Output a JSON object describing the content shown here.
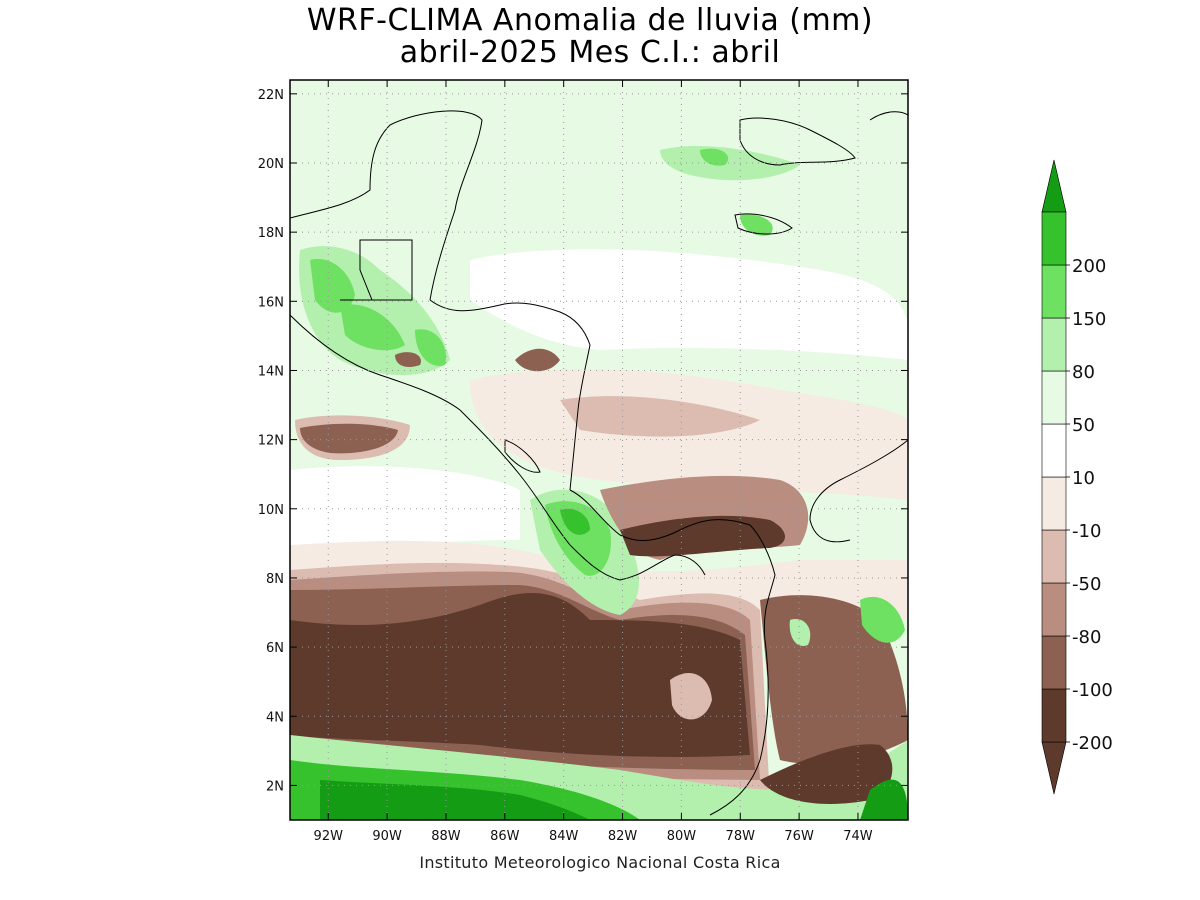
{
  "title": {
    "line1": "WRF-CLIMA Anomalia de lluvia (mm)",
    "line2": "abril-2025 Mes C.I.: abril"
  },
  "footer": "Instituto Meteorologico Nacional Costa Rica",
  "map": {
    "lon_range": [
      -93.3,
      -72.3
    ],
    "lat_range": [
      1.0,
      22.4
    ],
    "lat_ticks": [
      {
        "value": 22,
        "label": "22N"
      },
      {
        "value": 20,
        "label": "20N"
      },
      {
        "value": 18,
        "label": "18N"
      },
      {
        "value": 16,
        "label": "16N"
      },
      {
        "value": 14,
        "label": "14N"
      },
      {
        "value": 12,
        "label": "12N"
      },
      {
        "value": 10,
        "label": "10N"
      },
      {
        "value": 8,
        "label": "8N"
      },
      {
        "value": 6,
        "label": "6N"
      },
      {
        "value": 4,
        "label": "4N"
      },
      {
        "value": 2,
        "label": "2N"
      }
    ],
    "lon_ticks": [
      {
        "value": -92,
        "label": "92W"
      },
      {
        "value": -90,
        "label": "90W"
      },
      {
        "value": -88,
        "label": "88W"
      },
      {
        "value": -86,
        "label": "86W"
      },
      {
        "value": -84,
        "label": "84W"
      },
      {
        "value": -82,
        "label": "82W"
      },
      {
        "value": -80,
        "label": "80W"
      },
      {
        "value": -78,
        "label": "78W"
      },
      {
        "value": -76,
        "label": "76W"
      },
      {
        "value": -74,
        "label": "74W"
      }
    ],
    "gridlines": "dotted"
  },
  "colorbar": {
    "levels": [
      "-200",
      "-100",
      "-80",
      "-50",
      "-10",
      "10",
      "50",
      "80",
      "150",
      "200"
    ],
    "colors": {
      "min_triangle": "#5e3a2c",
      "bands": [
        "#5e3a2c",
        "#8c6152",
        "#b98d80",
        "#dcbcb0",
        "#f5ebe2",
        "#ffffff",
        "#e6fae4",
        "#b3f0ad",
        "#6ee062",
        "#35c22c"
      ],
      "max_triangle": "#139c14"
    }
  },
  "palette": {
    "deep_dry": "#5e3a2c",
    "dry": "#8c6152",
    "mid_dry": "#b98d80",
    "light_dry": "#dcbcb0",
    "very_light_dry": "#f5ebe2",
    "very_light_wet": "#e6fae4",
    "light_wet": "#b3f0ad",
    "wet": "#6ee062",
    "deep_wet": "#35c22c",
    "extreme_wet": "#139c14"
  }
}
